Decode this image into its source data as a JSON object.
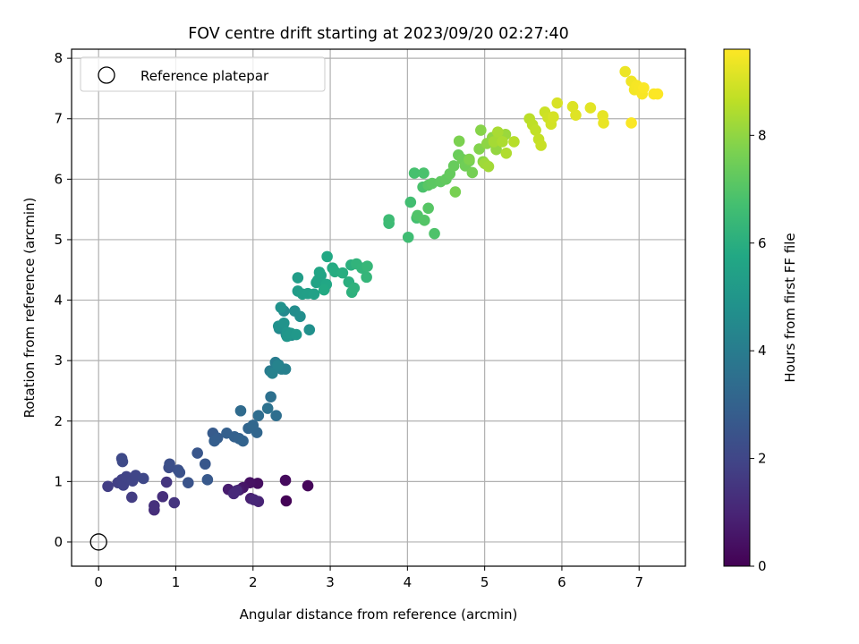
{
  "chart_data": {
    "type": "scatter",
    "title": "FOV centre drift starting at 2023/09/20 02:27:40",
    "xlabel": "Angular distance from reference (arcmin)",
    "ylabel": "Rotation from reference (arcmin)",
    "xlim": [
      -0.35,
      7.6
    ],
    "ylim": [
      -0.4,
      8.15
    ],
    "xticks": [
      0,
      1,
      2,
      3,
      4,
      5,
      6,
      7
    ],
    "yticks": [
      0,
      1,
      2,
      3,
      4,
      5,
      6,
      7,
      8
    ],
    "grid": true,
    "legend": {
      "placement": "top-left",
      "entries": [
        "Reference platepar"
      ]
    },
    "colorbar": {
      "label": "Hours from first FF file",
      "range": [
        0,
        9.6
      ],
      "ticks": [
        0,
        2,
        4,
        6,
        8
      ],
      "colormap": "viridis"
    },
    "reference": {
      "x": 0,
      "y": 0
    },
    "series": [
      {
        "x": [
          2.43,
          2.71,
          2.42,
          2.06,
          1.96,
          1.87,
          1.82,
          1.68,
          1.97,
          2.07,
          2.01,
          1.79,
          1.75,
          0.72,
          0.83,
          0.72,
          0.98,
          0.88,
          0.43,
          0.12,
          0.25,
          0.3,
          0.32,
          0.36,
          0.44,
          0.48,
          0.58,
          0.3,
          0.31,
          0.91,
          0.92,
          1.03,
          1.05,
          1.16,
          1.28,
          1.38,
          1.41,
          1.48,
          1.54,
          1.5,
          1.66,
          1.76,
          1.82,
          1.87,
          1.94,
          2.05,
          2.0,
          1.84,
          2.07,
          2.3,
          2.23,
          2.19,
          2.22,
          2.29,
          2.33,
          2.37,
          2.42,
          2.25,
          2.32,
          2.34,
          2.4,
          2.43,
          2.5,
          2.54,
          2.61,
          2.73,
          2.33,
          2.36,
          2.4,
          2.44,
          2.44,
          2.49,
          2.56,
          2.58,
          2.58,
          2.64,
          2.71,
          2.79,
          2.82,
          2.88,
          2.84,
          2.86,
          2.95,
          2.96,
          2.92,
          3.03,
          3.06,
          3.16,
          3.24,
          3.27,
          3.28,
          3.31,
          3.34,
          3.41,
          3.47,
          3.48,
          3.76,
          3.76,
          4.01,
          4.04,
          4.12,
          4.09,
          4.21,
          4.2,
          4.35,
          4.13,
          4.22,
          4.27,
          4.27,
          4.32,
          4.43,
          4.5,
          4.55,
          4.6,
          4.66,
          4.71,
          4.75,
          4.8,
          4.84,
          4.62,
          4.67,
          4.8,
          4.93,
          4.95,
          4.98,
          5.03,
          5.1,
          5.15,
          5.21,
          5.27,
          5.0,
          5.05,
          5.12,
          5.17,
          5.23,
          5.28,
          5.38,
          5.58,
          5.62,
          5.66,
          5.7,
          5.73,
          5.78,
          5.82,
          5.86,
          5.89,
          5.94,
          6.14,
          6.18,
          6.37,
          6.53,
          6.54,
          6.82,
          6.9,
          6.94,
          6.97,
          7.0,
          7.04,
          7.06,
          7.19,
          7.24,
          6.9
        ],
        "y": [
          0.68,
          0.93,
          1.02,
          0.97,
          0.98,
          0.9,
          0.86,
          0.87,
          0.72,
          0.67,
          0.7,
          0.85,
          0.8,
          0.53,
          0.75,
          0.6,
          0.65,
          0.99,
          0.74,
          0.92,
          0.98,
          1.03,
          0.94,
          1.08,
          1.01,
          1.1,
          1.05,
          1.38,
          1.33,
          1.23,
          1.29,
          1.19,
          1.15,
          0.98,
          1.47,
          1.29,
          1.03,
          1.8,
          1.72,
          1.67,
          1.8,
          1.74,
          1.71,
          1.67,
          1.88,
          1.81,
          1.93,
          2.17,
          2.09,
          2.09,
          2.4,
          2.21,
          2.83,
          2.97,
          2.93,
          2.86,
          2.86,
          2.79,
          2.92,
          3.53,
          3.82,
          3.43,
          3.42,
          3.82,
          3.73,
          3.51,
          3.57,
          3.88,
          3.62,
          3.47,
          3.4,
          3.45,
          3.43,
          4.15,
          4.37,
          4.1,
          4.11,
          4.1,
          4.29,
          4.41,
          4.33,
          4.46,
          4.26,
          4.72,
          4.17,
          4.53,
          4.47,
          4.45,
          4.3,
          4.58,
          4.13,
          4.2,
          4.6,
          4.53,
          4.38,
          4.56,
          5.27,
          5.33,
          5.04,
          5.62,
          5.36,
          6.1,
          6.1,
          5.87,
          5.1,
          5.4,
          5.32,
          5.52,
          5.9,
          5.93,
          5.96,
          6.0,
          6.09,
          6.22,
          6.4,
          6.33,
          6.22,
          6.3,
          6.11,
          5.79,
          6.63,
          6.33,
          6.5,
          6.81,
          6.29,
          6.59,
          6.69,
          6.49,
          6.71,
          6.74,
          6.26,
          6.21,
          6.62,
          6.78,
          6.62,
          6.43,
          6.62,
          7.0,
          6.9,
          6.81,
          6.66,
          6.56,
          7.11,
          7.02,
          6.91,
          7.03,
          7.26,
          7.2,
          7.06,
          7.18,
          7.05,
          6.93,
          7.78,
          7.62,
          7.48,
          7.55,
          7.5,
          7.41,
          7.51,
          7.41,
          7.41,
          6.93
        ],
        "hours": [
          0.05,
          0.15,
          0.25,
          0.35,
          0.45,
          0.55,
          0.65,
          0.75,
          0.85,
          0.95,
          1.05,
          1.1,
          1.15,
          1.25,
          1.3,
          1.35,
          1.45,
          1.5,
          1.7,
          1.75,
          1.8,
          1.85,
          1.9,
          1.92,
          1.95,
          2.0,
          2.05,
          2.1,
          2.15,
          2.25,
          2.3,
          2.35,
          2.4,
          2.45,
          2.55,
          2.6,
          2.65,
          2.75,
          2.8,
          2.85,
          2.9,
          2.95,
          3.0,
          3.05,
          3.1,
          3.15,
          3.2,
          3.35,
          3.4,
          3.45,
          3.55,
          3.6,
          3.95,
          4.0,
          4.05,
          4.1,
          4.15,
          4.2,
          4.25,
          4.45,
          4.5,
          4.55,
          4.6,
          4.65,
          4.7,
          4.75,
          4.8,
          4.85,
          4.9,
          4.95,
          5.0,
          5.05,
          5.1,
          5.25,
          5.3,
          5.35,
          5.4,
          5.45,
          5.5,
          5.55,
          5.6,
          5.65,
          5.7,
          5.75,
          5.8,
          5.85,
          5.9,
          5.95,
          6.0,
          6.05,
          6.1,
          6.15,
          6.2,
          6.25,
          6.3,
          6.35,
          6.5,
          6.55,
          6.6,
          6.65,
          6.7,
          6.75,
          6.8,
          6.85,
          6.9,
          6.95,
          7.0,
          7.05,
          7.1,
          7.15,
          7.2,
          7.25,
          7.3,
          7.35,
          7.4,
          7.45,
          7.5,
          7.55,
          7.6,
          7.65,
          7.7,
          7.75,
          7.8,
          7.85,
          7.9,
          7.95,
          8.0,
          8.05,
          8.1,
          8.15,
          8.2,
          8.25,
          8.3,
          8.35,
          8.4,
          8.45,
          8.55,
          8.6,
          8.65,
          8.7,
          8.75,
          8.8,
          8.85,
          8.9,
          8.95,
          9.0,
          9.05,
          9.1,
          9.15,
          9.2,
          9.25,
          9.3,
          9.35,
          9.4,
          9.45,
          9.48,
          9.5,
          9.52,
          9.55,
          9.57,
          9.58,
          9.56
        ]
      }
    ]
  }
}
